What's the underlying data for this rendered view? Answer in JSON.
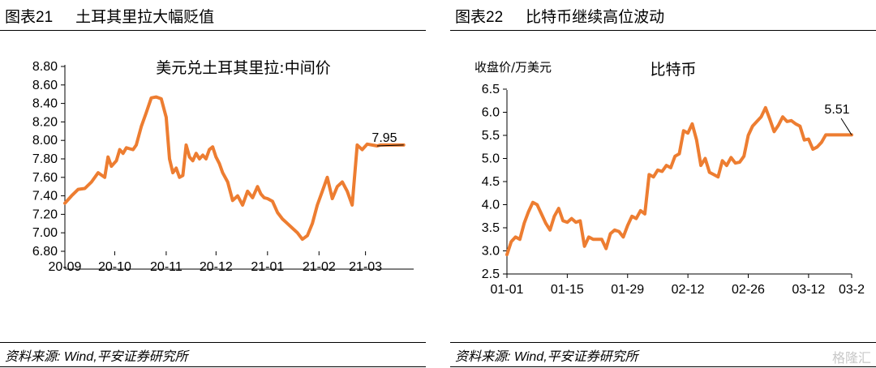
{
  "left_panel": {
    "figure_number": "图表21",
    "figure_title": "土耳其里拉大幅贬值",
    "source": "资料来源: Wind,平安证券研究所"
  },
  "right_panel": {
    "figure_number": "图表22",
    "figure_title": "比特币继续高位波动",
    "source": "资料来源: Wind,平安证券研究所"
  },
  "watermark": "格隆汇",
  "colors": {
    "line": "#ED7D31",
    "axis": "#000000"
  },
  "chart_data": [
    {
      "type": "line",
      "title": "美元兑土耳其里拉:中间价",
      "ylabel": "",
      "ylim": [
        6.8,
        8.8
      ],
      "yticks": [
        "8.80",
        "8.60",
        "8.40",
        "8.20",
        "8.00",
        "7.80",
        "7.60",
        "7.40",
        "7.20",
        "7.00",
        "6.80"
      ],
      "xlim": [
        0,
        210
      ],
      "xticks": [
        {
          "x": 0,
          "label": "20-09"
        },
        {
          "x": 30,
          "label": "20-10"
        },
        {
          "x": 61,
          "label": "20-11"
        },
        {
          "x": 91,
          "label": "20-12"
        },
        {
          "x": 122,
          "label": "21-01"
        },
        {
          "x": 153,
          "label": "21-02"
        },
        {
          "x": 181,
          "label": "21-03"
        }
      ],
      "series": [
        {
          "x": [
            0,
            4,
            8,
            12,
            16,
            20,
            24,
            26,
            28,
            31,
            33,
            35,
            37,
            39,
            41,
            43,
            46,
            49,
            52,
            55,
            58,
            61,
            63,
            65,
            67,
            69,
            71,
            73,
            75,
            77,
            79,
            81,
            83,
            85,
            87,
            89,
            91,
            93,
            95,
            98,
            101,
            104,
            107,
            110,
            113,
            116,
            118,
            120,
            122,
            125,
            128,
            131,
            134,
            137,
            140,
            143,
            146,
            149,
            152,
            155,
            158,
            161,
            164,
            167,
            170,
            173,
            176,
            179,
            182,
            185,
            188,
            190,
            192,
            195,
            198,
            200,
            201,
            202,
            203,
            204
          ],
          "y": [
            7.32,
            7.4,
            7.47,
            7.48,
            7.55,
            7.65,
            7.6,
            7.82,
            7.72,
            7.78,
            7.9,
            7.86,
            7.92,
            7.91,
            7.9,
            7.95,
            8.15,
            8.3,
            8.46,
            8.47,
            8.45,
            8.25,
            7.8,
            7.65,
            7.7,
            7.6,
            7.62,
            7.95,
            7.82,
            7.78,
            7.86,
            7.8,
            7.84,
            7.8,
            7.9,
            7.93,
            7.82,
            7.75,
            7.65,
            7.55,
            7.35,
            7.4,
            7.3,
            7.45,
            7.38,
            7.5,
            7.42,
            7.38,
            7.37,
            7.34,
            7.22,
            7.15,
            7.1,
            7.05,
            7.0,
            6.93,
            6.97,
            7.1,
            7.3,
            7.45,
            7.6,
            7.37,
            7.5,
            7.55,
            7.45,
            7.3,
            7.95,
            7.9,
            7.96,
            7.95,
            7.94,
            7.95,
            7.95,
            7.95,
            7.95,
            7.95,
            7.95,
            7.95,
            7.95,
            7.95
          ]
        }
      ],
      "annotations": [
        {
          "text": "7.95"
        }
      ]
    },
    {
      "type": "line",
      "title": "比特币",
      "ylabel": "收盘价/万美元",
      "ylim": [
        2.5,
        6.5
      ],
      "yticks": [
        "6.5",
        "6.0",
        "5.5",
        "5.0",
        "4.5",
        "4.0",
        "3.5",
        "3.0",
        "2.5"
      ],
      "xlim": [
        0,
        80
      ],
      "xticks": [
        {
          "x": 0,
          "label": "01-01"
        },
        {
          "x": 14,
          "label": "01-15"
        },
        {
          "x": 28,
          "label": "01-29"
        },
        {
          "x": 42,
          "label": "02-12"
        },
        {
          "x": 56,
          "label": "02-26"
        },
        {
          "x": 70,
          "label": "03-12"
        },
        {
          "x": 80,
          "label": "03-2"
        }
      ],
      "series": [
        {
          "x": [
            0,
            1,
            2,
            3,
            4,
            5,
            6,
            7,
            8,
            9,
            10,
            11,
            12,
            13,
            14,
            15,
            16,
            17,
            18,
            19,
            20,
            21,
            22,
            23,
            24,
            25,
            26,
            27,
            28,
            29,
            30,
            31,
            32,
            33,
            34,
            35,
            36,
            37,
            38,
            39,
            40,
            41,
            42,
            43,
            44,
            45,
            46,
            47,
            48,
            49,
            50,
            51,
            52,
            53,
            54,
            55,
            56,
            57,
            58,
            59,
            60,
            61,
            62,
            63,
            64,
            65,
            66,
            67,
            68,
            69,
            70,
            71,
            72,
            73,
            74,
            75,
            76,
            77,
            78,
            79,
            80
          ],
          "y": [
            2.92,
            3.2,
            3.3,
            3.25,
            3.6,
            3.85,
            4.05,
            4.0,
            3.8,
            3.6,
            3.45,
            3.75,
            3.92,
            3.65,
            3.62,
            3.7,
            3.62,
            3.65,
            3.1,
            3.3,
            3.25,
            3.25,
            3.25,
            3.05,
            3.37,
            3.45,
            3.42,
            3.3,
            3.55,
            3.75,
            3.7,
            3.87,
            3.8,
            4.65,
            4.6,
            4.75,
            4.72,
            4.85,
            4.8,
            5.05,
            5.1,
            5.6,
            5.55,
            5.75,
            5.4,
            4.85,
            5.0,
            4.7,
            4.65,
            4.6,
            4.95,
            4.85,
            5.02,
            4.9,
            4.92,
            5.05,
            5.5,
            5.7,
            5.8,
            5.9,
            6.1,
            5.85,
            5.58,
            5.72,
            5.9,
            5.8,
            5.82,
            5.75,
            5.7,
            5.4,
            5.42,
            5.2,
            5.25,
            5.35,
            5.51,
            5.51,
            5.51,
            5.51,
            5.51,
            5.51,
            5.51
          ]
        }
      ],
      "annotations": [
        {
          "text": "5.51"
        }
      ]
    }
  ]
}
